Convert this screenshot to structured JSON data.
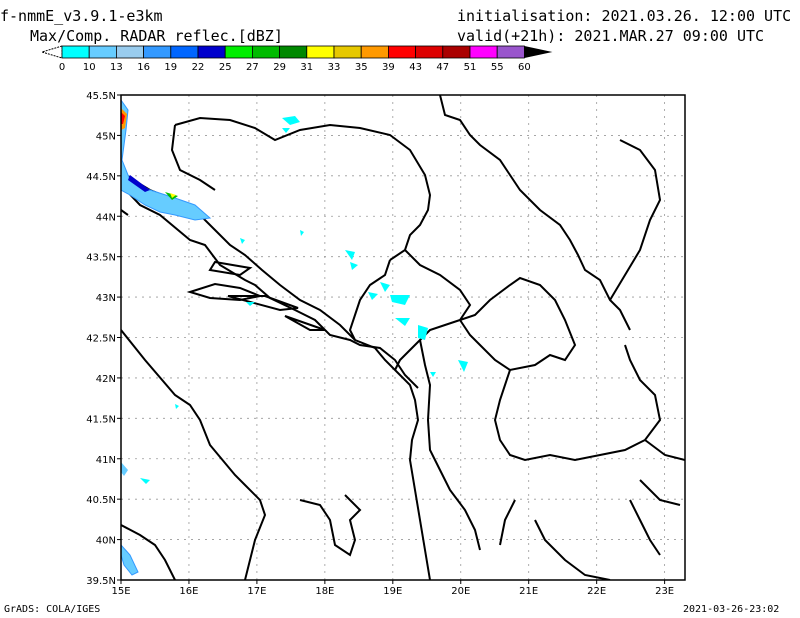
{
  "header": {
    "model": "f-nmmE_v3.9.1-e3km",
    "field": "Max/Comp. RADAR reflec.[dBZ]",
    "init": "initialisation: 2021.03.26. 12:00 UTC",
    "valid": "valid(+21h): 2021.MAR.27 09:00 UTC"
  },
  "colorbar": {
    "labels": [
      "0",
      "10",
      "13",
      "16",
      "19",
      "22",
      "25",
      "27",
      "29",
      "31",
      "33",
      "35",
      "39",
      "43",
      "47",
      "51",
      "55",
      "60"
    ],
    "colors": [
      "#00ffff",
      "#66ccff",
      "#99ccee",
      "#3399ff",
      "#0066ff",
      "#0000cc",
      "#00ee00",
      "#00bb00",
      "#008800",
      "#ffff00",
      "#e6c800",
      "#ff9900",
      "#ff0000",
      "#dd0000",
      "#aa0000",
      "#ff00ff",
      "#9955cc"
    ]
  },
  "map": {
    "lon_labels": [
      "15E",
      "16E",
      "17E",
      "18E",
      "19E",
      "20E",
      "21E",
      "22E",
      "23E"
    ],
    "lat_labels": [
      "45.5N",
      "45N",
      "44.5N",
      "44N",
      "43.5N",
      "43N",
      "42.5N",
      "42N",
      "41.5N",
      "41N",
      "40.5N",
      "40N",
      "39.5N"
    ],
    "lon_range": [
      15,
      23.3
    ],
    "lat_range": [
      39.5,
      45.5
    ]
  },
  "footer": {
    "left": "GrADS: COLA/IGES",
    "right": "2021-03-26-23:02"
  }
}
